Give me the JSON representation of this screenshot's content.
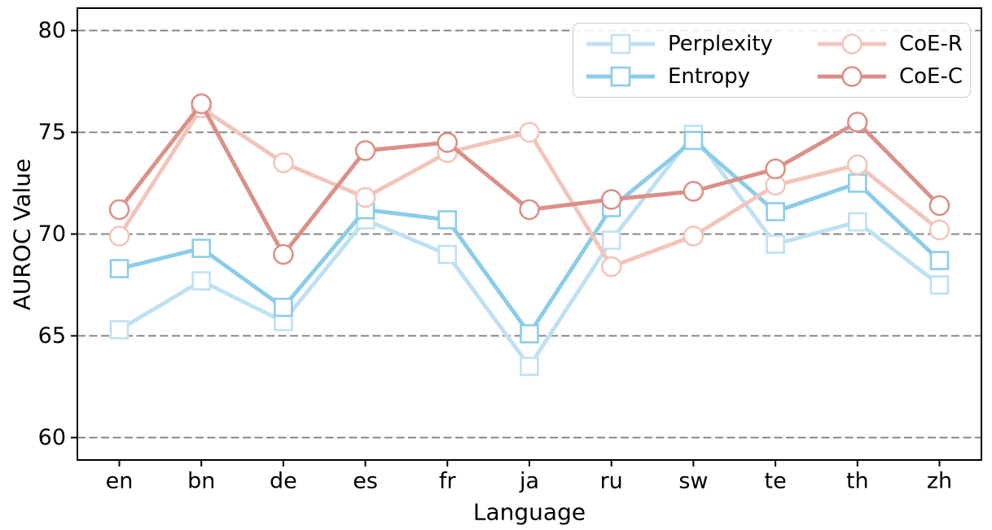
{
  "figure": {
    "background": "#ffffff",
    "plot_border_color": "#000000"
  },
  "chart_data": {
    "type": "line",
    "title": "",
    "xlabel": "Language",
    "ylabel": "AUROC Value",
    "categories": [
      "en",
      "bn",
      "de",
      "es",
      "fr",
      "ja",
      "ru",
      "sw",
      "te",
      "th",
      "zh"
    ],
    "series": [
      {
        "name": "Perplexity",
        "marker": "square",
        "color": "#bfe1f1",
        "values": [
          65.3,
          67.7,
          65.7,
          70.7,
          69.0,
          63.5,
          69.7,
          74.9,
          69.5,
          70.6,
          67.5
        ]
      },
      {
        "name": "Entropy",
        "marker": "square",
        "color": "#8bcde9",
        "values": [
          68.3,
          69.3,
          66.4,
          71.2,
          70.7,
          65.1,
          71.3,
          74.6,
          71.1,
          72.5,
          68.7
        ]
      },
      {
        "name": "CoE-R",
        "marker": "circle",
        "color": "#f2c5bb",
        "values": [
          69.9,
          76.2,
          73.5,
          71.8,
          74.0,
          75.0,
          68.4,
          69.9,
          72.4,
          73.4,
          70.2
        ]
      },
      {
        "name": "CoE-C",
        "marker": "circle",
        "color": "#db9088",
        "values": [
          71.2,
          76.4,
          69.0,
          74.1,
          74.5,
          71.2,
          71.7,
          72.1,
          73.2,
          75.5,
          71.4
        ]
      }
    ],
    "yticks": [
      60,
      65,
      70,
      75,
      80
    ],
    "ylim": [
      58.9,
      81.1
    ],
    "grid": {
      "show": true,
      "style": "dashed",
      "color": "#7a7a7a"
    },
    "legend": {
      "position": "upper-right",
      "columns": 2,
      "entries": [
        "Perplexity",
        "Entropy",
        "CoE-R",
        "CoE-C"
      ]
    }
  }
}
